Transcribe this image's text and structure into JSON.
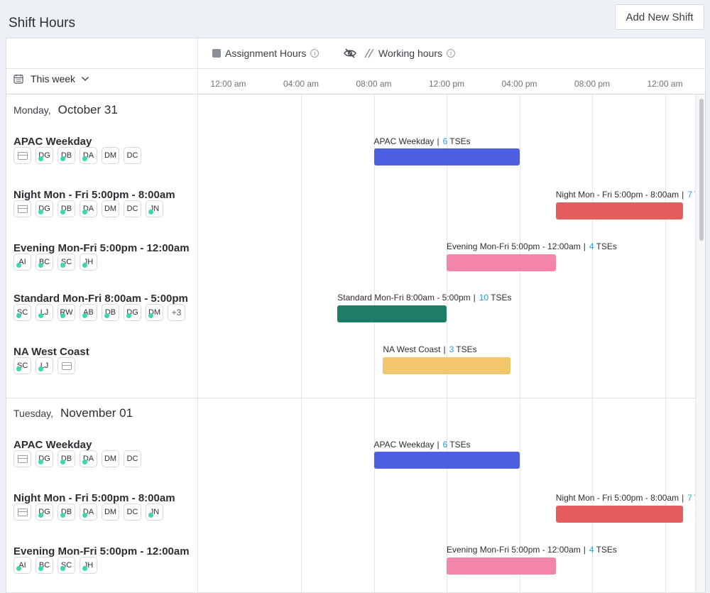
{
  "page": {
    "title": "Shift Hours",
    "add_button": "Add New Shift"
  },
  "legend": {
    "assignment_label": "Assignment Hours",
    "working_label": "Working hours",
    "info_glyph": "i",
    "assignment_color": "#8a8f96"
  },
  "week_selector": {
    "label": "This week",
    "chevron": "⌄"
  },
  "timeline": {
    "ticks": [
      "12:00 am",
      "04:00 am",
      "08:00 am",
      "12:00 pm",
      "04:00 pm",
      "08:00 pm",
      "12:00 am"
    ]
  },
  "tse_suffix": "TSEs",
  "more_count": "+3",
  "days": [
    {
      "dow": "Monday,",
      "date": "October 31",
      "shifts": [
        {
          "name": "APAC Weekday",
          "label": "APAC Weekday",
          "count": "6",
          "color": "#4b5fe0",
          "start_hour": 8,
          "end_hour": 16,
          "avatars": [
            {
              "inbox": true
            },
            {
              "i": "DG",
              "dot": true
            },
            {
              "i": "DB",
              "dot": true
            },
            {
              "i": "DA",
              "dot": true
            },
            {
              "i": "DM"
            },
            {
              "i": "DC"
            }
          ]
        },
        {
          "name": "Night Mon - Fri 5:00pm - 8:00am",
          "label": "Night Mon - Fri 5:00pm - 8:00am",
          "count": "7",
          "color": "#e55c5c",
          "start_hour": 18,
          "end_hour": 25,
          "avatars": [
            {
              "inbox": true
            },
            {
              "i": "DG",
              "dot": true
            },
            {
              "i": "DB",
              "dot": true
            },
            {
              "i": "DA",
              "dot": true
            },
            {
              "i": "DM"
            },
            {
              "i": "DC"
            },
            {
              "i": "JN",
              "dot": true
            }
          ]
        },
        {
          "name": "Evening Mon-Fri 5:00pm - 12:00am",
          "label": "Evening Mon-Fri 5:00pm - 12:00am",
          "count": "4",
          "color": "#f385a9",
          "start_hour": 12,
          "end_hour": 18,
          "avatars": [
            {
              "i": "AI",
              "dot": true
            },
            {
              "i": "BC",
              "dot": true
            },
            {
              "i": "SC",
              "dot": true
            },
            {
              "i": "JH",
              "dot": true
            }
          ]
        },
        {
          "name": "Standard Mon-Fri 8:00am - 5:00pm",
          "label": "Standard Mon-Fri 8:00am - 5:00pm",
          "count": "10",
          "color": "#1f7d67",
          "start_hour": 6,
          "end_hour": 12,
          "avatars": [
            {
              "i": "SC",
              "dot": true
            },
            {
              "i": "LJ",
              "dot": true
            },
            {
              "i": "RW",
              "dot": true
            },
            {
              "i": "AB",
              "dot": true
            },
            {
              "i": "DB",
              "dot": true
            },
            {
              "i": "DG",
              "dot": true
            },
            {
              "i": "DM",
              "dot": true
            }
          ],
          "more": true
        },
        {
          "name": "NA West Coast",
          "label": "NA West Coast",
          "count": "3",
          "color": "#f2c76b",
          "start_hour": 8.5,
          "end_hour": 15.5,
          "avatars": [
            {
              "i": "SC",
              "dot": true
            },
            {
              "i": "LJ",
              "dot": true
            },
            {
              "inbox": true
            }
          ]
        }
      ]
    },
    {
      "dow": "Tuesday,",
      "date": "November 01",
      "shifts": [
        {
          "name": "APAC Weekday",
          "label": "APAC Weekday",
          "count": "6",
          "color": "#4b5fe0",
          "start_hour": 8,
          "end_hour": 16,
          "avatars": [
            {
              "inbox": true
            },
            {
              "i": "DG",
              "dot": true
            },
            {
              "i": "DB",
              "dot": true
            },
            {
              "i": "DA",
              "dot": true
            },
            {
              "i": "DM"
            },
            {
              "i": "DC"
            }
          ]
        },
        {
          "name": "Night Mon - Fri 5:00pm - 8:00am",
          "label": "Night Mon - Fri 5:00pm - 8:00am",
          "count": "7",
          "color": "#e55c5c",
          "start_hour": 18,
          "end_hour": 25,
          "avatars": [
            {
              "inbox": true
            },
            {
              "i": "DG",
              "dot": true
            },
            {
              "i": "DB",
              "dot": true
            },
            {
              "i": "DA",
              "dot": true
            },
            {
              "i": "DM"
            },
            {
              "i": "DC"
            },
            {
              "i": "JN",
              "dot": true
            }
          ]
        },
        {
          "name": "Evening Mon-Fri 5:00pm - 12:00am",
          "label": "Evening Mon-Fri 5:00pm - 12:00am",
          "count": "4",
          "color": "#f385a9",
          "start_hour": 12,
          "end_hour": 18,
          "avatars": [
            {
              "i": "AI",
              "dot": true
            },
            {
              "i": "BC",
              "dot": true
            },
            {
              "i": "SC",
              "dot": true
            },
            {
              "i": "JH",
              "dot": true
            }
          ]
        }
      ]
    }
  ]
}
